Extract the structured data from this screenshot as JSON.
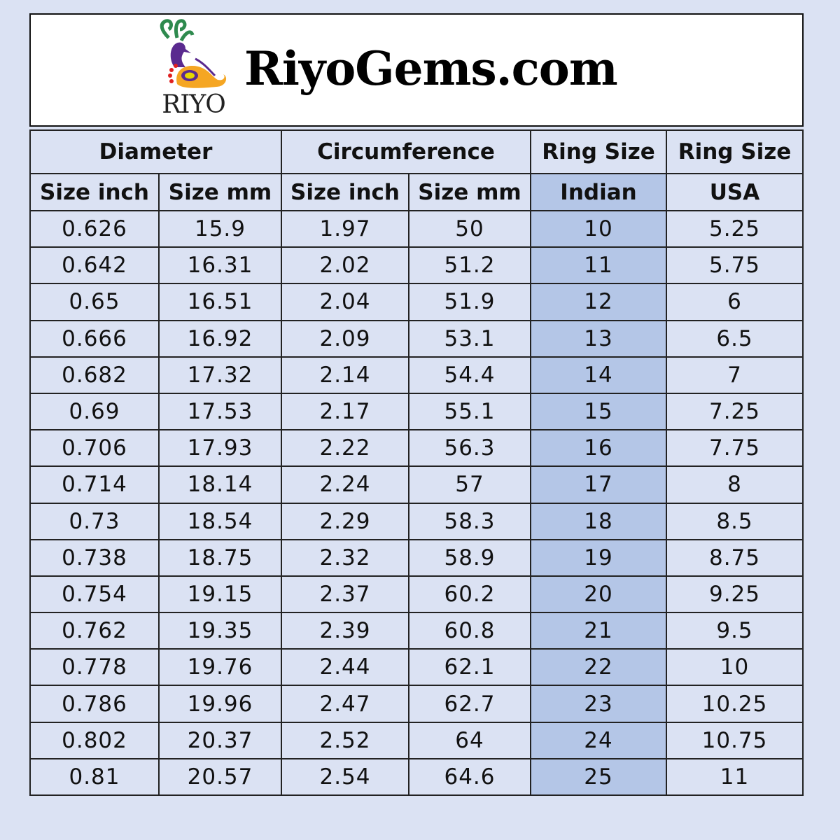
{
  "brand": {
    "logo_text": "RIYO",
    "site_name": "RiyoGems.com"
  },
  "colors": {
    "background": "#dbe2f3",
    "highlight_column": "#b4c6e7"
  },
  "table": {
    "group_headers": [
      "Diameter",
      "Circumference",
      "Ring Size",
      "Ring Size"
    ],
    "sub_headers": [
      "Size inch",
      "Size mm",
      "Size inch",
      "Size mm",
      "Indian",
      "USA"
    ],
    "rows": [
      [
        "0.626",
        "15.9",
        "1.97",
        "50",
        "10",
        "5.25"
      ],
      [
        "0.642",
        "16.31",
        "2.02",
        "51.2",
        "11",
        "5.75"
      ],
      [
        "0.65",
        "16.51",
        "2.04",
        "51.9",
        "12",
        "6"
      ],
      [
        "0.666",
        "16.92",
        "2.09",
        "53.1",
        "13",
        "6.5"
      ],
      [
        "0.682",
        "17.32",
        "2.14",
        "54.4",
        "14",
        "7"
      ],
      [
        "0.69",
        "17.53",
        "2.17",
        "55.1",
        "15",
        "7.25"
      ],
      [
        "0.706",
        "17.93",
        "2.22",
        "56.3",
        "16",
        "7.75"
      ],
      [
        "0.714",
        "18.14",
        "2.24",
        "57",
        "17",
        "8"
      ],
      [
        "0.73",
        "18.54",
        "2.29",
        "58.3",
        "18",
        "8.5"
      ],
      [
        "0.738",
        "18.75",
        "2.32",
        "58.9",
        "19",
        "8.75"
      ],
      [
        "0.754",
        "19.15",
        "2.37",
        "60.2",
        "20",
        "9.25"
      ],
      [
        "0.762",
        "19.35",
        "2.39",
        "60.8",
        "21",
        "9.5"
      ],
      [
        "0.778",
        "19.76",
        "2.44",
        "62.1",
        "22",
        "10"
      ],
      [
        "0.786",
        "19.96",
        "2.47",
        "62.7",
        "23",
        "10.25"
      ],
      [
        "0.802",
        "20.37",
        "2.52",
        "64",
        "24",
        "10.75"
      ],
      [
        "0.81",
        "20.57",
        "2.54",
        "64.6",
        "25",
        "11"
      ]
    ]
  }
}
